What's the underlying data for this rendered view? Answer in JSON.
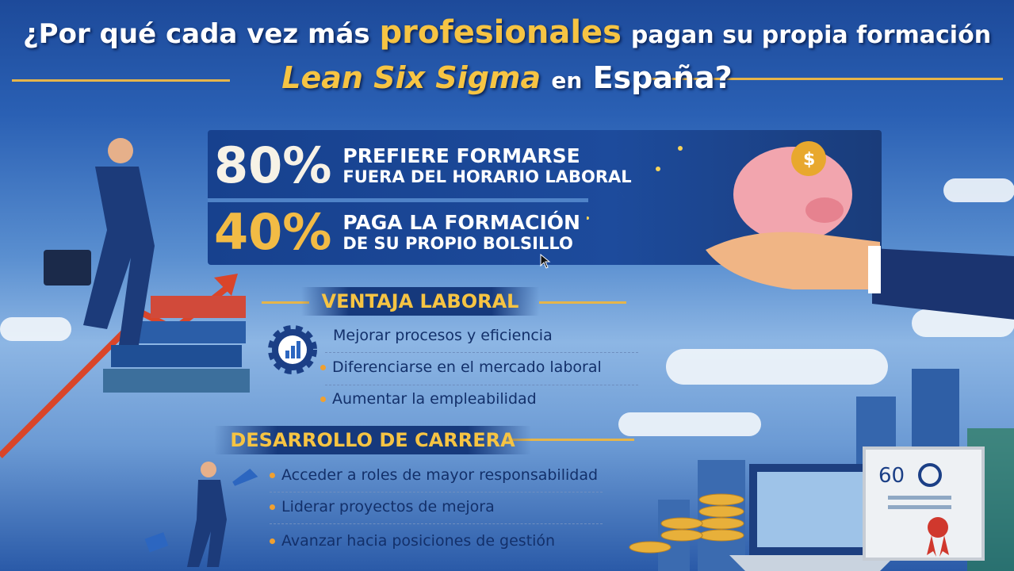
{
  "title": {
    "line1_pre": "¿Por qué cada vez más",
    "line1_highlight": "profesionales",
    "line1_post": "pagan su propia formación",
    "line2_highlight": "Lean Six Sigma",
    "line2_en": "en",
    "line2_post": "España?"
  },
  "stats": [
    {
      "value": "80%",
      "line1": "PREFIERE FORMARSE",
      "line2": "FUERA DEL HORARIO LABORAL",
      "color": "#f7f2e6"
    },
    {
      "value": "40%",
      "line1": "PAGA LA FORMACIÓN",
      "line2": "DE SU PROPIO BOLSILLO",
      "color": "#f2bb45"
    }
  ],
  "ventaja": {
    "heading": "VENTAJA LABORAL",
    "icon": "gear-chart-icon",
    "items": [
      "Mejorar procesos y eficiencia",
      "Diferenciarse en el mercado laboral",
      "Aumentar la empleabilidad"
    ]
  },
  "carrera": {
    "heading": "DESARROLLO DE CARRERA",
    "items": [
      "Acceder a roles de mayor responsabilidad",
      "Liderar proyectos de mejora",
      "Avanzar hacia posiciones de gestión"
    ]
  },
  "certificate": {
    "logo_text": "60"
  },
  "colors": {
    "accent": "#f6c443",
    "navy": "#16397c",
    "arrow": "#d9452a"
  }
}
